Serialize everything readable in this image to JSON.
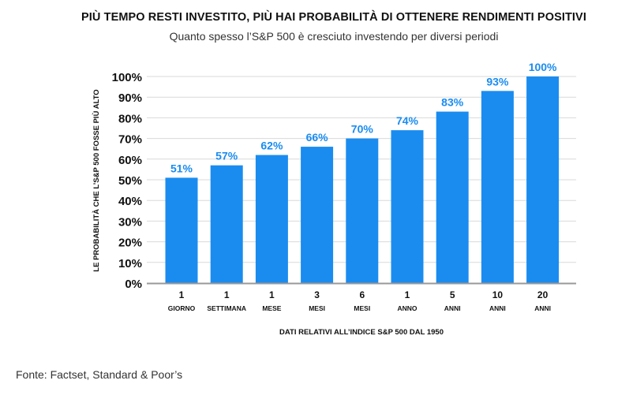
{
  "title": "PIÙ TEMPO RESTI INVESTITO, PIÙ HAI PROBABILITÀ DI OTTENERE RENDIMENTI POSITIVI",
  "subtitle": "Quanto spesso l’S&P 500 è cresciuto investendo per diversi periodi",
  "source": "Fonte: Factset, Standard & Poor’s",
  "colors": {
    "bar": "#1a8cf0",
    "label": "#1a8cf0",
    "grid": "#d9d9d9",
    "axis": "#999999"
  },
  "chart_data": {
    "type": "bar",
    "ylabel": "LE PROBABILITÀ CHE L’S&P 500 FOSSE PIÙ ALTO",
    "xlabel": "DATI RELATIVI ALL’INDICE S&P 500 DAL 1950",
    "categories": [
      {
        "num": "1",
        "unit": "GIORNO"
      },
      {
        "num": "1",
        "unit": "SETTIMANA"
      },
      {
        "num": "1",
        "unit": "MESE"
      },
      {
        "num": "3",
        "unit": "MESI"
      },
      {
        "num": "6",
        "unit": "MESI"
      },
      {
        "num": "1",
        "unit": "ANNO"
      },
      {
        "num": "5",
        "unit": "ANNI"
      },
      {
        "num": "10",
        "unit": "ANNI"
      },
      {
        "num": "20",
        "unit": "ANNI"
      }
    ],
    "values": [
      51,
      57,
      62,
      66,
      70,
      74,
      83,
      93,
      100
    ],
    "value_labels": [
      "51%",
      "57%",
      "62%",
      "66%",
      "70%",
      "74%",
      "83%",
      "93%",
      "100%"
    ],
    "yticks": [
      "0%",
      "10%",
      "20%",
      "30%",
      "40%",
      "50%",
      "60%",
      "70%",
      "80%",
      "90%",
      "100%"
    ],
    "ylim": [
      0,
      100
    ],
    "grid": true
  }
}
